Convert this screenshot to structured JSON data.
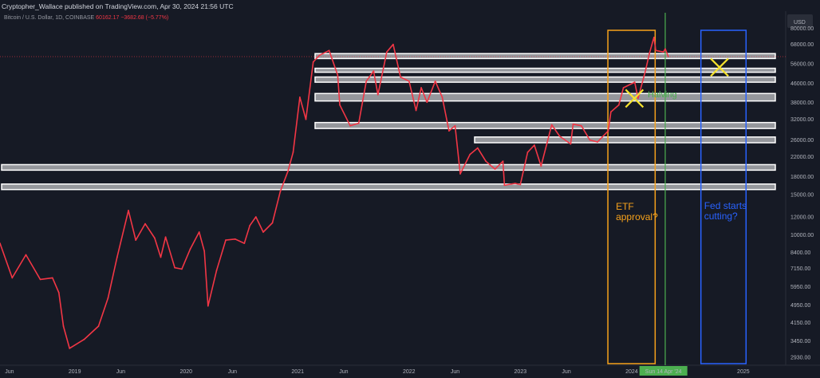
{
  "header": {
    "publisher": "Cryptopher_Wallace published on TradingView.com, Apr 30, 2024 21:56 UTC"
  },
  "symbol": {
    "name": "Bitcoin / U.S. Dollar, 1D, COINBASE",
    "last": "60162.17",
    "change": "−3682.68 (−5.77%)"
  },
  "currency_label": "USD",
  "colors": {
    "background": "#161a25",
    "price_line": "#f23645",
    "zones": "#ffffff",
    "etf_box": "#f7a21b",
    "fed_box": "#2962ff",
    "halving_line": "#4caf50",
    "cross": "#f5e22d"
  },
  "chart_data": {
    "type": "line",
    "title": "",
    "xlabel": "",
    "ylabel": "USD",
    "yscale": "log",
    "ylim": [
      2700,
      95000
    ],
    "xlim": [
      "2018-05-01",
      "2025-05-20"
    ],
    "grid": false,
    "x_tick_labels": [
      "Jun",
      "2019",
      "Jun",
      "2020",
      "Jun",
      "2021",
      "Jun",
      "2022",
      "Jun",
      "2023",
      "Jun",
      "2024",
      "Sun 14 Apr '24",
      "2025"
    ],
    "y_tick_labels": [
      "80000.00",
      "68000.00",
      "56000.00",
      "46000.00",
      "38000.00",
      "32000.00",
      "26000.00",
      "22000.00",
      "18000.00",
      "15000.00",
      "12000.00",
      "10000.00",
      "8400.00",
      "7150.00",
      "5950.00",
      "4950.00",
      "4150.00",
      "3450.00",
      "2930.00"
    ],
    "series": [
      {
        "x": [
          "2018-05-01",
          "2018-06-10",
          "2018-07-25",
          "2018-09-10",
          "2018-10-20",
          "2018-11-10",
          "2018-11-25",
          "2018-12-15",
          "2019-02-01",
          "2019-03-20",
          "2019-04-20",
          "2019-05-20",
          "2019-06-26",
          "2019-07-20",
          "2019-08-20",
          "2019-09-20",
          "2019-10-10",
          "2019-10-26",
          "2019-11-25",
          "2019-12-18",
          "2020-01-15",
          "2020-02-13",
          "2020-03-01",
          "2020-03-13",
          "2020-04-10",
          "2020-05-10",
          "2020-06-10",
          "2020-07-10",
          "2020-07-28",
          "2020-08-17",
          "2020-09-10",
          "2020-10-10",
          "2020-11-05",
          "2020-11-30",
          "2020-12-17",
          "2021-01-08",
          "2021-01-28",
          "2021-02-21",
          "2021-03-14",
          "2021-04-14",
          "2021-05-12",
          "2021-05-19",
          "2021-06-22",
          "2021-07-20",
          "2021-08-14",
          "2021-09-07",
          "2021-09-21",
          "2021-10-20",
          "2021-11-10",
          "2021-12-04",
          "2022-01-01",
          "2022-01-24",
          "2022-02-10",
          "2022-03-01",
          "2022-03-28",
          "2022-04-20",
          "2022-05-12",
          "2022-06-01",
          "2022-06-18",
          "2022-07-20",
          "2022-08-14",
          "2022-09-10",
          "2022-10-10",
          "2022-11-05",
          "2022-11-10",
          "2022-12-15",
          "2023-01-01",
          "2023-01-25",
          "2023-02-16",
          "2023-03-10",
          "2023-04-14",
          "2023-05-10",
          "2023-06-15",
          "2023-06-23",
          "2023-07-20",
          "2023-08-17",
          "2023-09-11",
          "2023-10-16",
          "2023-10-25",
          "2023-11-20",
          "2023-12-05",
          "2024-01-11",
          "2024-01-22",
          "2024-02-15",
          "2024-02-28",
          "2024-03-14",
          "2024-03-20",
          "2024-04-14",
          "2024-04-20",
          "2024-04-30"
        ],
        "y": [
          9200,
          6500,
          8200,
          6400,
          6500,
          5600,
          4000,
          3200,
          3500,
          4000,
          5300,
          8000,
          12800,
          9500,
          11200,
          9700,
          8000,
          9800,
          7200,
          7100,
          8700,
          10300,
          8500,
          4900,
          7000,
          9500,
          9600,
          9200,
          11000,
          12000,
          10300,
          11300,
          15500,
          19000,
          23000,
          40000,
          32000,
          57000,
          61000,
          64000,
          50000,
          37000,
          30000,
          30800,
          47000,
          52000,
          41000,
          63000,
          68000,
          49000,
          47000,
          35000,
          44000,
          38000,
          47000,
          40000,
          28500,
          30000,
          18500,
          22500,
          24000,
          21000,
          19400,
          21000,
          16500,
          16800,
          16600,
          23000,
          24700,
          20000,
          30300,
          27000,
          25000,
          30500,
          30000,
          26000,
          25500,
          28500,
          34500,
          37000,
          44000,
          46500,
          39500,
          52000,
          62000,
          73000,
          64000,
          63000,
          65000,
          60162
        ]
      }
    ],
    "zones": [
      {
        "low": 59000,
        "high": 62000
      },
      {
        "low": 51500,
        "high": 53500
      },
      {
        "low": 46500,
        "high": 49000
      },
      {
        "low": 38500,
        "high": 41500
      },
      {
        "low": 29200,
        "high": 31000
      },
      {
        "low": 25300,
        "high": 26800
      },
      {
        "low": 19200,
        "high": 20300
      },
      {
        "low": 15800,
        "high": 16700
      }
    ],
    "annotations": [
      {
        "text": "ETF approval?",
        "from": "2023-10-15",
        "to": "2024-03-18"
      },
      {
        "text": "Halving",
        "date": "2024-04-20"
      },
      {
        "text": "Fed starts cutting?",
        "from": "2024-08-15",
        "to": "2025-01-10"
      }
    ]
  }
}
